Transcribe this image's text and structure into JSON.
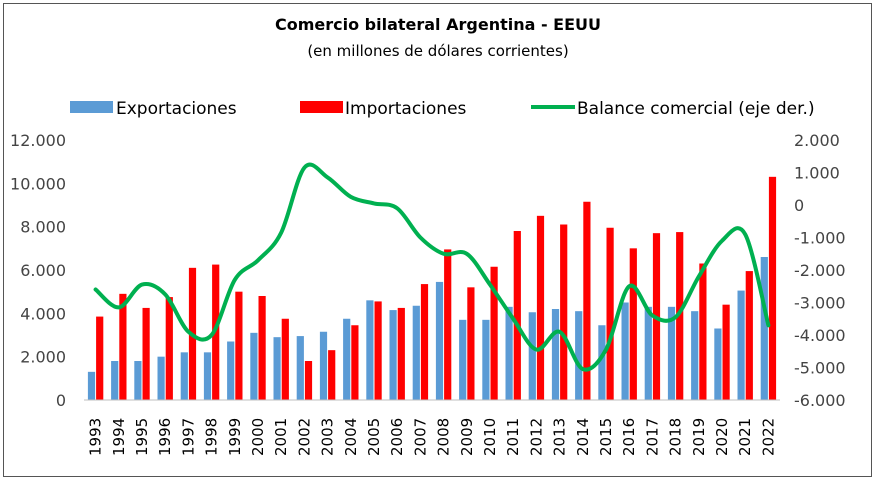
{
  "chart_data": {
    "type": "bar",
    "title": "Comercio bilateral Argentina - EEUU",
    "subtitle": "(en millones de dólares corrientes)",
    "categories": [
      "1993",
      "1994",
      "1995",
      "1996",
      "1997",
      "1998",
      "1999",
      "2000",
      "2001",
      "2002",
      "2003",
      "2004",
      "2005",
      "2006",
      "2007",
      "2008",
      "2009",
      "2010",
      "2011",
      "2012",
      "2013",
      "2014",
      "2015",
      "2016",
      "2017",
      "2018",
      "2019",
      "2020",
      "2021",
      "2022"
    ],
    "series": [
      {
        "name": "Exportaciones",
        "kind": "bar",
        "axis": "left",
        "color": "#5b9bd5",
        "values": [
          1300,
          1800,
          1800,
          2000,
          2200,
          2200,
          2700,
          3100,
          2900,
          2950,
          3150,
          3750,
          4600,
          4150,
          4350,
          5450,
          3700,
          3700,
          4300,
          4050,
          4200,
          4100,
          3450,
          4500,
          4300,
          4300,
          4100,
          3300,
          5050,
          6600
        ]
      },
      {
        "name": "Importaciones",
        "kind": "bar",
        "axis": "left",
        "color": "#ff0000",
        "values": [
          3850,
          4900,
          4250,
          4750,
          6100,
          6250,
          5000,
          4800,
          3750,
          1800,
          2300,
          3450,
          4550,
          4250,
          5350,
          6950,
          5200,
          6150,
          7800,
          8500,
          8100,
          9150,
          7950,
          7000,
          7700,
          7750,
          6300,
          4400,
          5950,
          10300
        ]
      },
      {
        "name": "Balance comercial (eje der.)",
        "kind": "line",
        "axis": "right",
        "color": "#00b050",
        "values": [
          -2600,
          -3150,
          -2450,
          -2750,
          -3900,
          -4000,
          -2300,
          -1700,
          -850,
          1150,
          850,
          250,
          50,
          -100,
          -1000,
          -1500,
          -1500,
          -2450,
          -3500,
          -4450,
          -3900,
          -5050,
          -4450,
          -2500,
          -3400,
          -3450,
          -2200,
          -1100,
          -900,
          -3700
        ]
      }
    ],
    "y_left": {
      "min": 0,
      "max": 12000,
      "ticks": [
        "0",
        "2.000",
        "4.000",
        "6.000",
        "8.000",
        "10.000",
        "12.000"
      ]
    },
    "y_right": {
      "min": -6000,
      "max": 2000,
      "ticks": [
        "-6.000",
        "-5.000",
        "-4.000",
        "-3.000",
        "-2.000",
        "-1.000",
        "0",
        "1.000",
        "2.000"
      ]
    },
    "grid": false,
    "legend_position": "top"
  }
}
